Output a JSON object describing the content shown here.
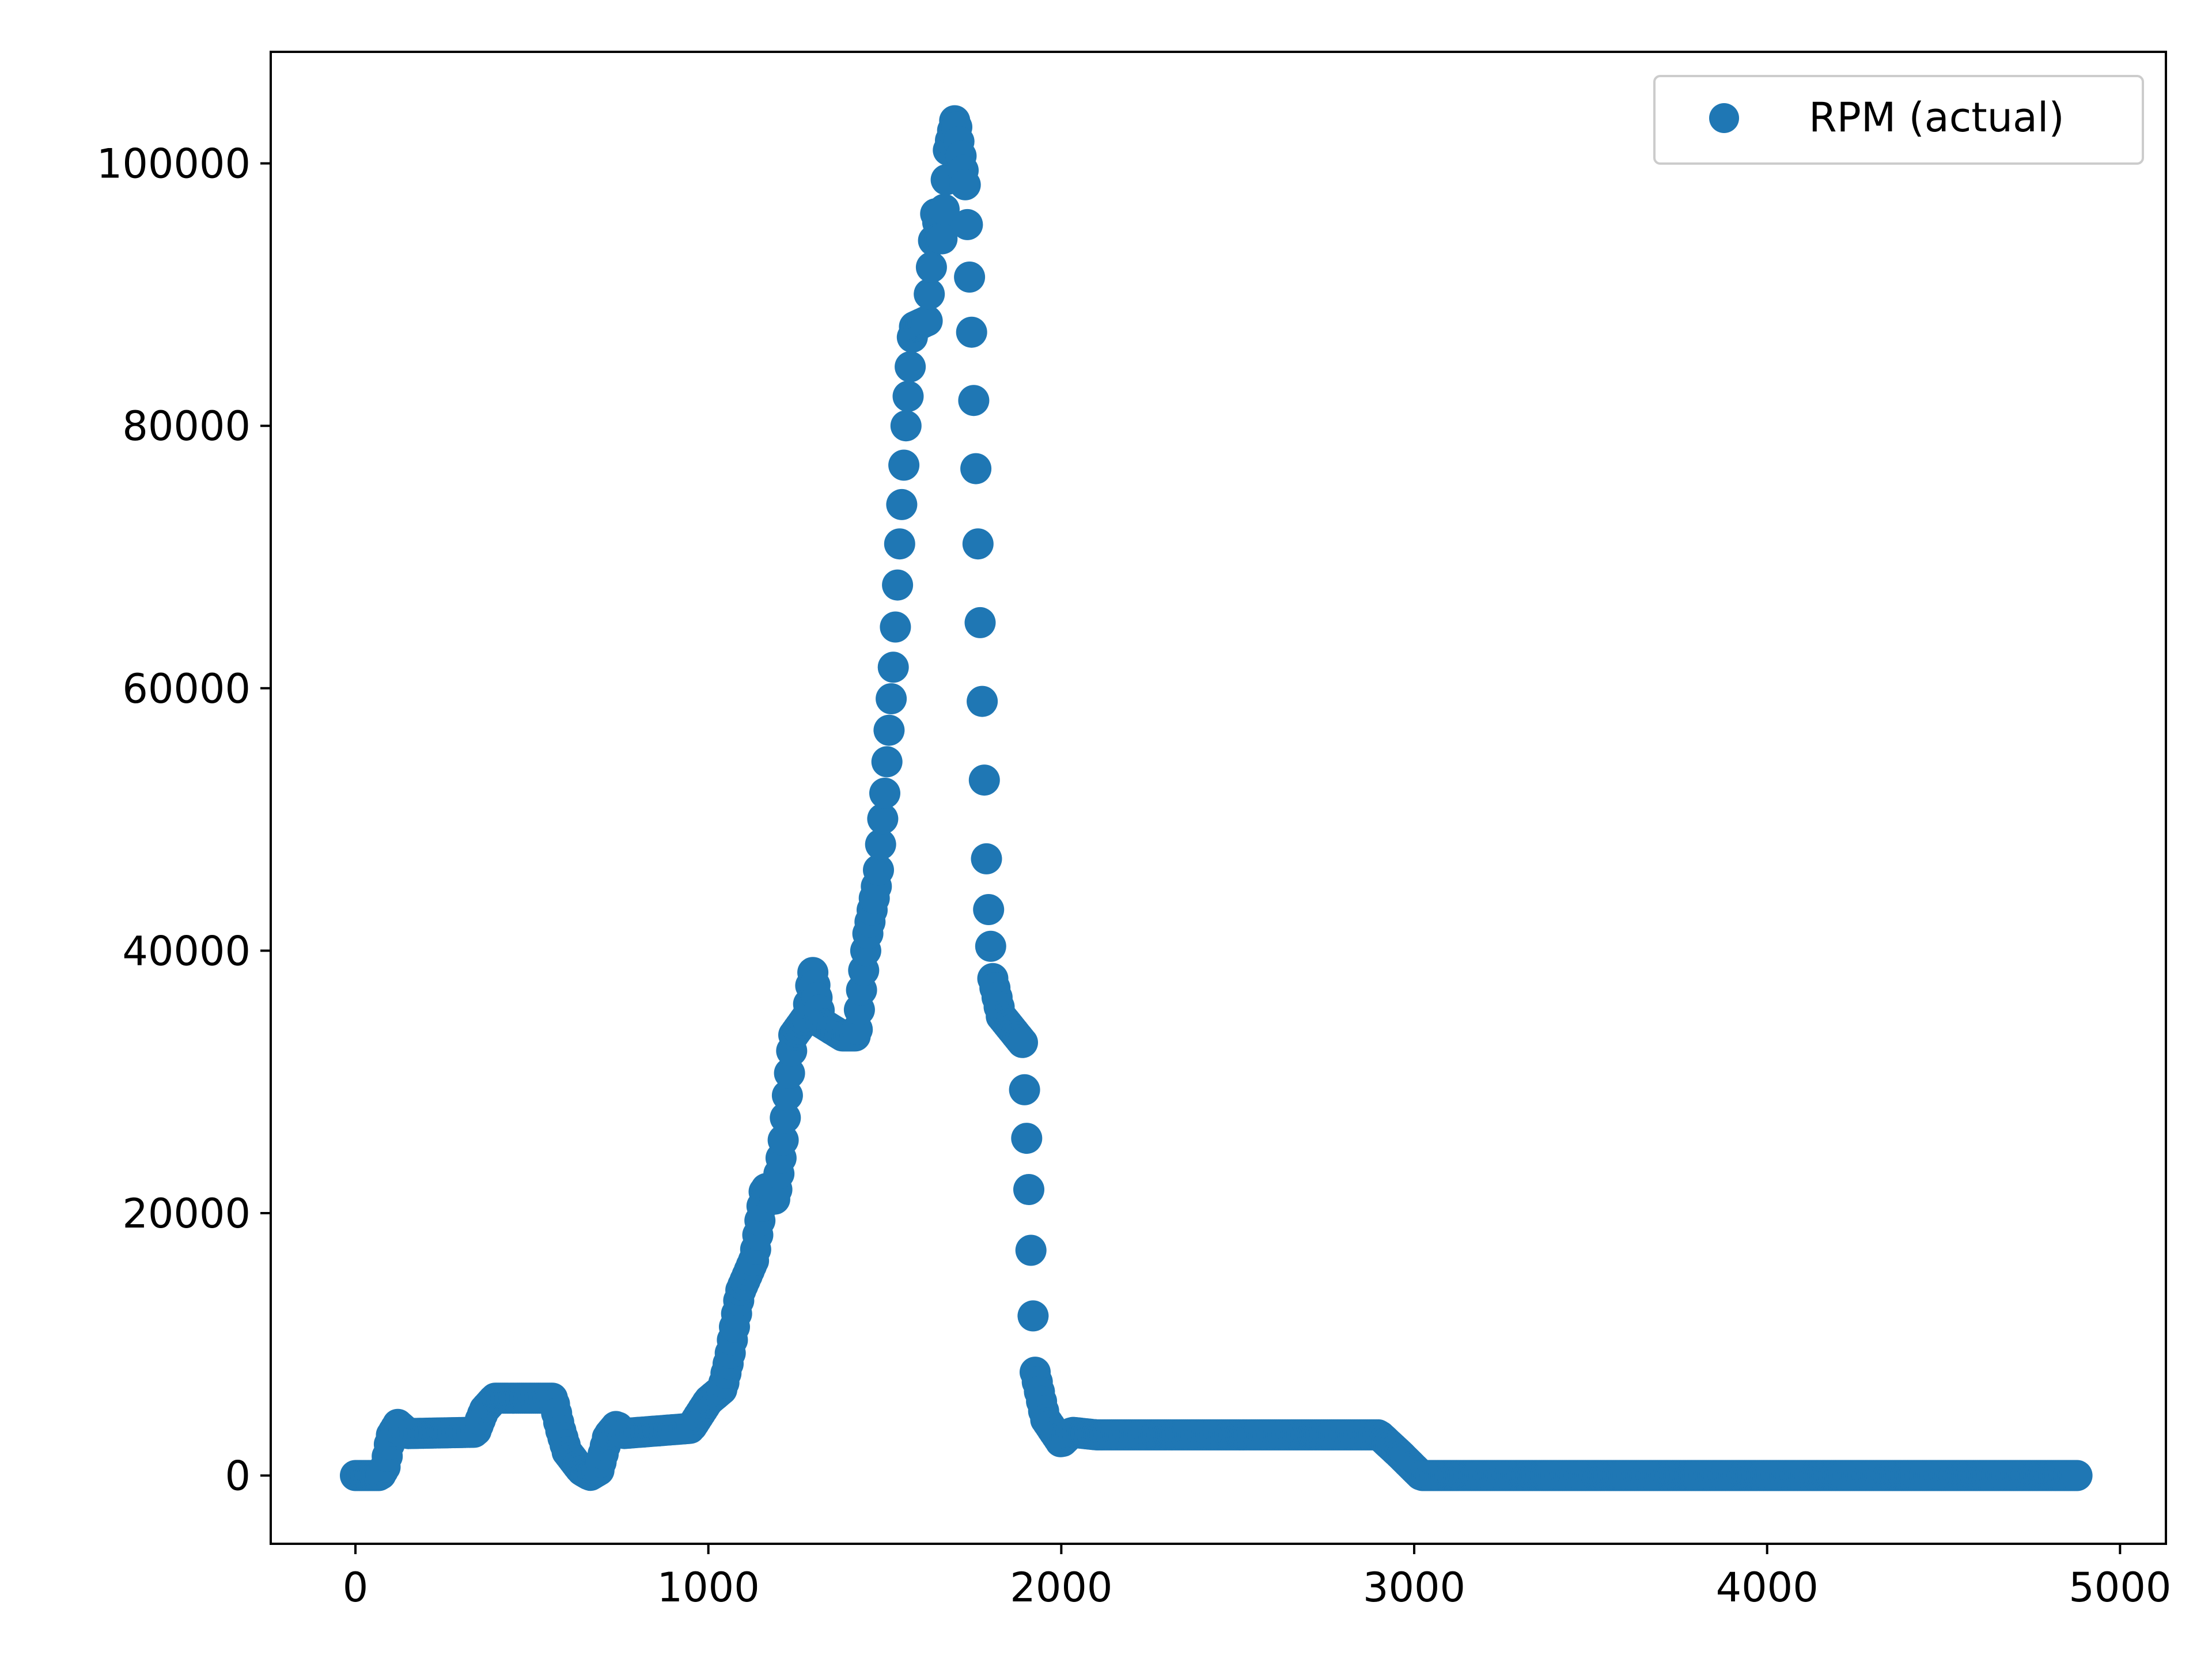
{
  "chart_data": {
    "type": "scatter",
    "title": "",
    "xlabel": "",
    "ylabel": "",
    "xlim": [
      -240,
      5130
    ],
    "ylim": [
      -5200,
      108500
    ],
    "xticks": [
      0,
      1000,
      2000,
      3000,
      4000,
      5000
    ],
    "yticks": [
      0,
      20000,
      40000,
      60000,
      80000,
      100000
    ],
    "xtick_labels": [
      "0",
      "1000",
      "2000",
      "3000",
      "4000",
      "5000"
    ],
    "ytick_labels": [
      "0",
      "20000",
      "40000",
      "60000",
      "80000",
      "100000"
    ],
    "grid": false,
    "legend": {
      "position": "top-right",
      "entries": [
        {
          "label": "RPM (actual)",
          "color": "#1f77b4",
          "marker": "circle"
        }
      ]
    },
    "series": [
      {
        "name": "RPM (actual)",
        "color": "#1f77b4",
        "marker": "circle",
        "profile": [
          [
            0,
            0
          ],
          [
            70,
            0
          ],
          [
            85,
            700
          ],
          [
            100,
            3000
          ],
          [
            120,
            3900
          ],
          [
            150,
            3200
          ],
          [
            340,
            3300
          ],
          [
            365,
            5000
          ],
          [
            395,
            5900
          ],
          [
            560,
            5900
          ],
          [
            580,
            3600
          ],
          [
            600,
            1800
          ],
          [
            640,
            400
          ],
          [
            665,
            0
          ],
          [
            690,
            400
          ],
          [
            715,
            3000
          ],
          [
            740,
            3800
          ],
          [
            760,
            3200
          ],
          [
            950,
            3600
          ],
          [
            1000,
            5700
          ],
          [
            1040,
            6600
          ],
          [
            1060,
            9000
          ],
          [
            1090,
            14000
          ],
          [
            1130,
            16500
          ],
          [
            1160,
            22000
          ],
          [
            1190,
            21000
          ],
          [
            1210,
            25000
          ],
          [
            1240,
            33500
          ],
          [
            1280,
            35000
          ],
          [
            1295,
            38500
          ],
          [
            1320,
            34500
          ],
          [
            1380,
            33500
          ],
          [
            1420,
            33500
          ],
          [
            1450,
            41000
          ],
          [
            1480,
            45500
          ],
          [
            1500,
            52000
          ],
          [
            1525,
            62000
          ],
          [
            1540,
            70000
          ],
          [
            1560,
            80000
          ],
          [
            1580,
            87500
          ],
          [
            1620,
            88000
          ],
          [
            1645,
            96500
          ],
          [
            1660,
            93500
          ],
          [
            1680,
            101000
          ],
          [
            1700,
            103500
          ],
          [
            1730,
            98000
          ],
          [
            1745,
            88000
          ],
          [
            1760,
            75000
          ],
          [
            1775,
            60000
          ],
          [
            1790,
            45000
          ],
          [
            1805,
            38000
          ],
          [
            1830,
            35000
          ],
          [
            1860,
            34000
          ],
          [
            1890,
            33000
          ],
          [
            1900,
            27000
          ],
          [
            1910,
            20500
          ],
          [
            1925,
            8000
          ],
          [
            1955,
            4300
          ],
          [
            1985,
            3100
          ],
          [
            2000,
            2500
          ],
          [
            2030,
            3300
          ],
          [
            2100,
            3100
          ],
          [
            2900,
            3100
          ],
          [
            2960,
            1600
          ],
          [
            3020,
            0
          ],
          [
            4880,
            0
          ]
        ],
        "sample_step": 6
      }
    ]
  }
}
